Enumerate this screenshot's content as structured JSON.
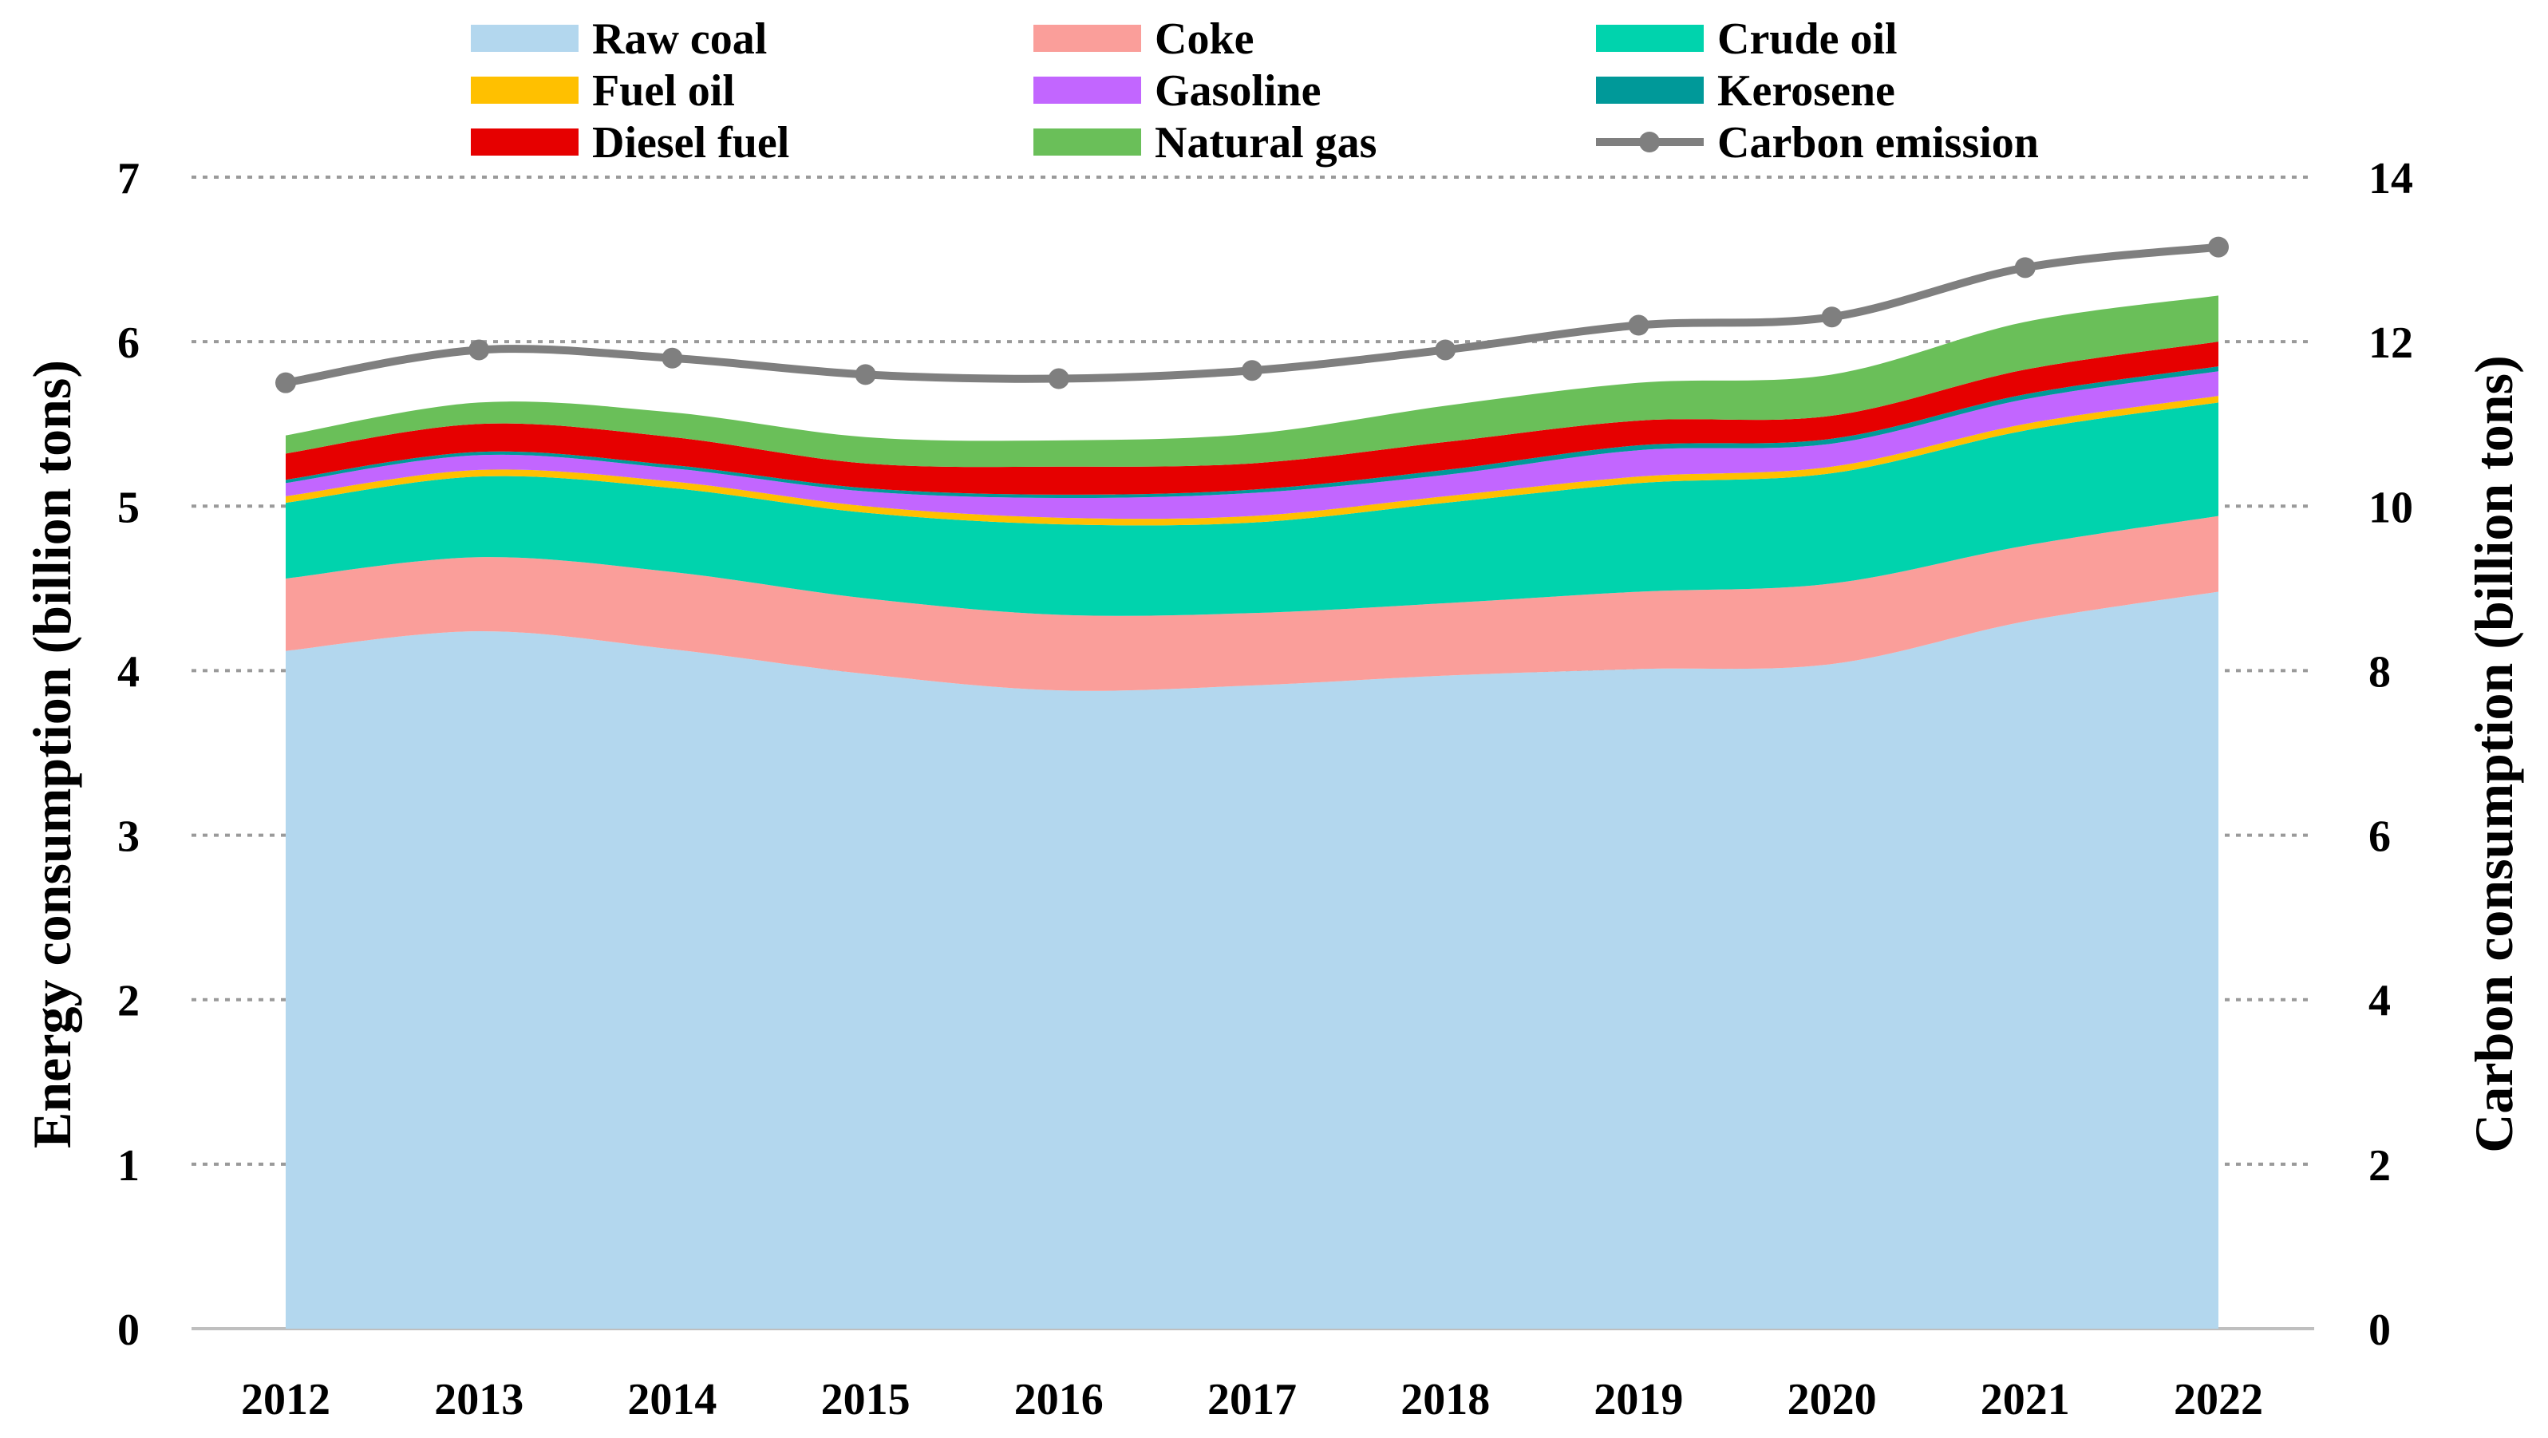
{
  "chart_data": {
    "type": "area",
    "stacked": true,
    "title": "",
    "categories": [
      "2012",
      "2013",
      "2014",
      "2015",
      "2016",
      "2017",
      "2018",
      "2019",
      "2020",
      "2021",
      "2022"
    ],
    "xlabel": "",
    "ylabel": "Energy consumption (billion tons)",
    "y2label": "Carbon consumption (billion tons)",
    "ylim": [
      0,
      7
    ],
    "y2lim": [
      0,
      14
    ],
    "yticks": [
      "0",
      "1",
      "2",
      "3",
      "4",
      "5",
      "6",
      "7"
    ],
    "y2ticks": [
      "0",
      "2",
      "4",
      "6",
      "8",
      "10",
      "12",
      "14"
    ],
    "grid": true,
    "legend_position": "top",
    "series": [
      {
        "name": "Raw coal",
        "color": "#b3d7ee",
        "values": [
          4.12,
          4.24,
          4.13,
          3.98,
          3.88,
          3.91,
          3.97,
          4.01,
          4.04,
          4.3,
          4.48
        ]
      },
      {
        "name": "Coke",
        "color": "#fa9e9a",
        "values": [
          0.44,
          0.45,
          0.47,
          0.46,
          0.46,
          0.44,
          0.44,
          0.47,
          0.49,
          0.46,
          0.46
        ]
      },
      {
        "name": "Crude oil",
        "color": "#00d3ad",
        "values": [
          0.46,
          0.49,
          0.51,
          0.52,
          0.55,
          0.55,
          0.61,
          0.66,
          0.67,
          0.7,
          0.69
        ]
      },
      {
        "name": "Fuel oil",
        "color": "#ffc000",
        "values": [
          0.04,
          0.04,
          0.04,
          0.04,
          0.04,
          0.04,
          0.04,
          0.04,
          0.04,
          0.04,
          0.04
        ]
      },
      {
        "name": "Gasoline",
        "color": "#c266ff",
        "values": [
          0.08,
          0.09,
          0.08,
          0.09,
          0.12,
          0.14,
          0.13,
          0.16,
          0.14,
          0.15,
          0.15
        ]
      },
      {
        "name": "Kerosene",
        "color": "#009999",
        "values": [
          0.02,
          0.02,
          0.02,
          0.02,
          0.02,
          0.02,
          0.03,
          0.03,
          0.03,
          0.03,
          0.03
        ]
      },
      {
        "name": "Diesel fuel",
        "color": "#e60000",
        "values": [
          0.16,
          0.17,
          0.17,
          0.15,
          0.17,
          0.16,
          0.17,
          0.15,
          0.14,
          0.15,
          0.15
        ]
      },
      {
        "name": "Natural gas",
        "color": "#6abf59",
        "values": [
          0.11,
          0.13,
          0.15,
          0.16,
          0.16,
          0.18,
          0.22,
          0.23,
          0.25,
          0.29,
          0.28
        ]
      }
    ],
    "line_series": {
      "name": "Carbon emission",
      "color": "#7f7f7f",
      "axis": "right",
      "values": [
        11.5,
        11.9,
        11.8,
        11.6,
        11.55,
        11.65,
        11.9,
        12.2,
        12.3,
        12.9,
        13.15
      ]
    }
  }
}
